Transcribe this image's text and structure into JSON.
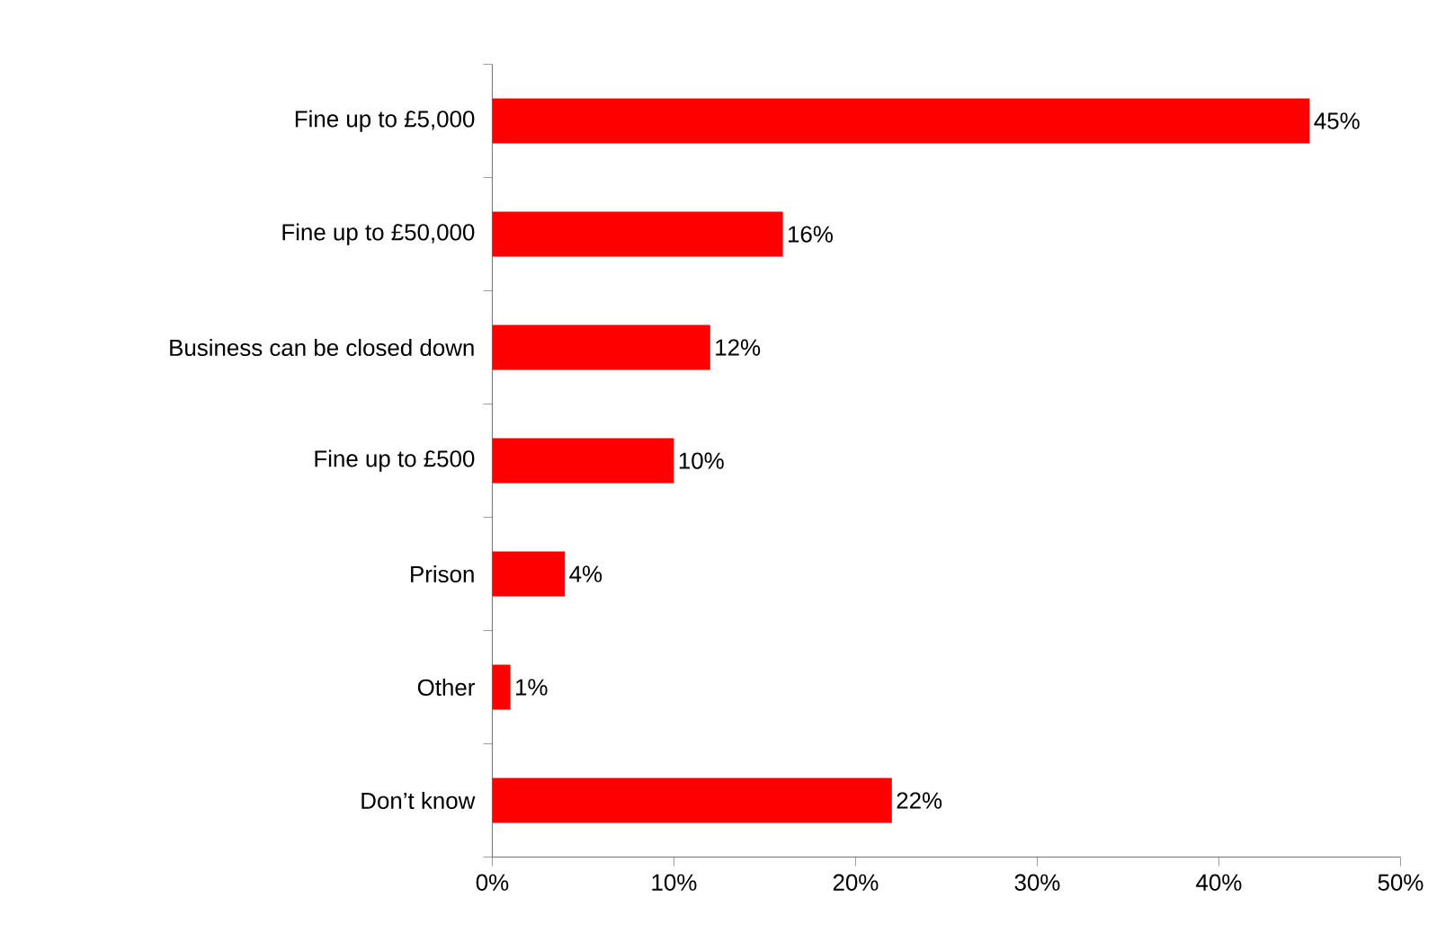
{
  "chart_data": {
    "type": "bar",
    "orientation": "horizontal",
    "categories": [
      "Fine up to £5,000",
      "Fine up to £50,000",
      "Business can be closed down",
      "Fine up to £500",
      "Prison",
      "Other",
      "Don’t know"
    ],
    "values": [
      45,
      16,
      12,
      10,
      4,
      1,
      22
    ],
    "value_labels": [
      "45%",
      "16%",
      "12%",
      "10%",
      "4%",
      "1%",
      "22%"
    ],
    "color": "#ff0000",
    "xlim": [
      0,
      50
    ],
    "xticks": [
      {
        "value": 0,
        "label": "0%"
      },
      {
        "value": 10,
        "label": "10%"
      },
      {
        "value": 20,
        "label": "20%"
      },
      {
        "value": 30,
        "label": "30%"
      },
      {
        "value": 40,
        "label": "40%"
      },
      {
        "value": 50,
        "label": "50%"
      }
    ],
    "grid": false
  }
}
